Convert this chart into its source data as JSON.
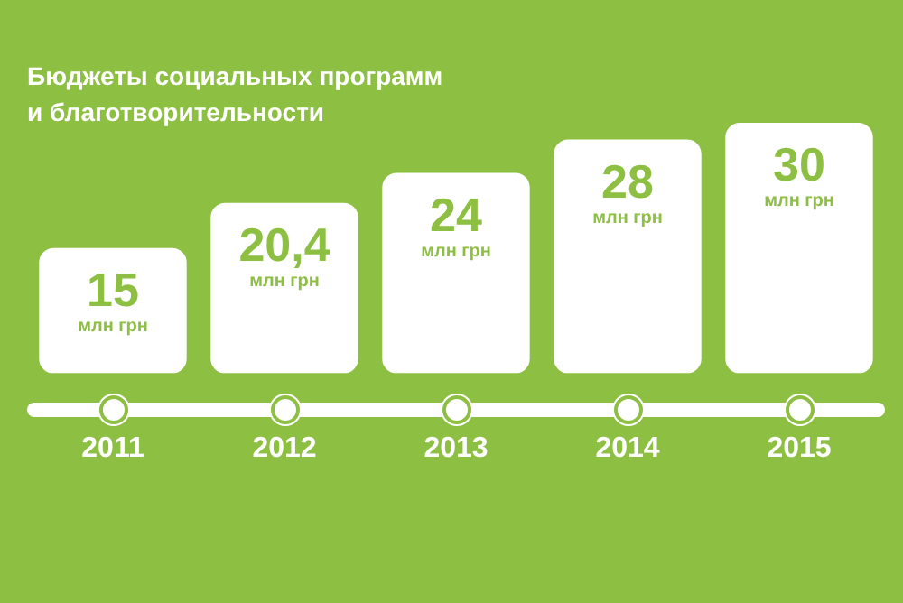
{
  "chart_data": {
    "type": "bar",
    "title": "Бюджеты социальных программ\nи благотворительности",
    "categories": [
      "2011",
      "2012",
      "2013",
      "2014",
      "2015"
    ],
    "values": [
      15,
      20.4,
      24,
      28,
      30
    ],
    "value_labels": [
      "15 млн грн",
      "20,4 млн грн",
      "24 млн грн",
      "28 млн грн",
      "30 млн грн"
    ],
    "color": "#ffffff",
    "grid": false,
    "legend": false
  }
}
